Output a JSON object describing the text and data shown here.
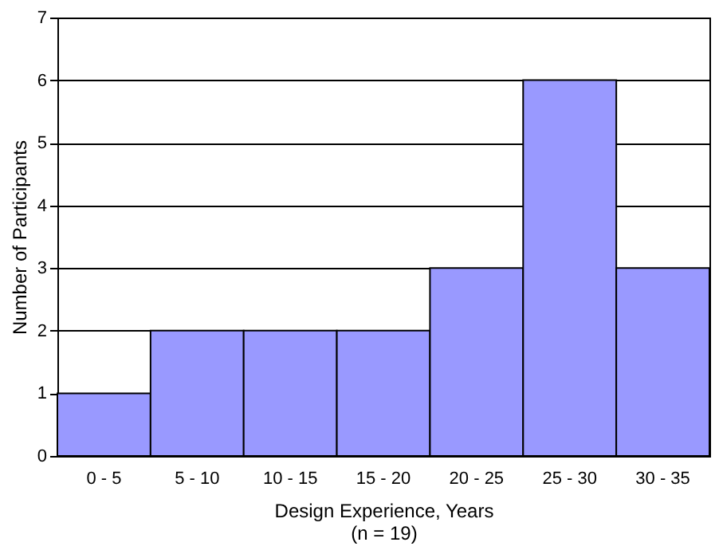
{
  "chart_data": {
    "type": "bar",
    "xlabel": "Design Experience, Years\n(n = 19)",
    "ylabel": "Number of Participants",
    "categories": [
      "0 - 5",
      "5 - 10",
      "10 - 15",
      "15 - 20",
      "20 - 25",
      "25 - 30",
      "30 - 35"
    ],
    "values": [
      1,
      2,
      2,
      2,
      3,
      6,
      3
    ],
    "color": "#9999ff",
    "ylim": [
      0,
      7
    ],
    "yticks": [
      0,
      1,
      2,
      3,
      4,
      5,
      6,
      7
    ],
    "grid": "y"
  }
}
